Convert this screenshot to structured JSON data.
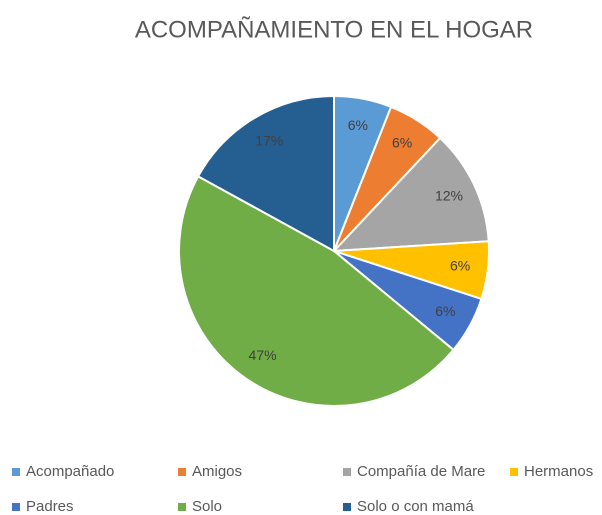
{
  "chart_data": {
    "type": "pie",
    "title": "ACOMPAÑAMIENTO EN EL HOGAR",
    "categories": [
      "Acompañado",
      "Amigos",
      "Compañía de Mare",
      "Hermanos",
      "Padres",
      "Solo",
      "Solo o con mamá"
    ],
    "values": [
      6,
      6,
      12,
      6,
      6,
      47,
      17
    ],
    "value_labels": [
      "6%",
      "6%",
      "12%",
      "6%",
      "6%",
      "47%",
      "17%"
    ],
    "colors": [
      "#5b9bd5",
      "#ed7d31",
      "#a5a5a5",
      "#ffc000",
      "#4472c4",
      "#70ad47",
      "#255e91"
    ],
    "legend": "bottom"
  }
}
